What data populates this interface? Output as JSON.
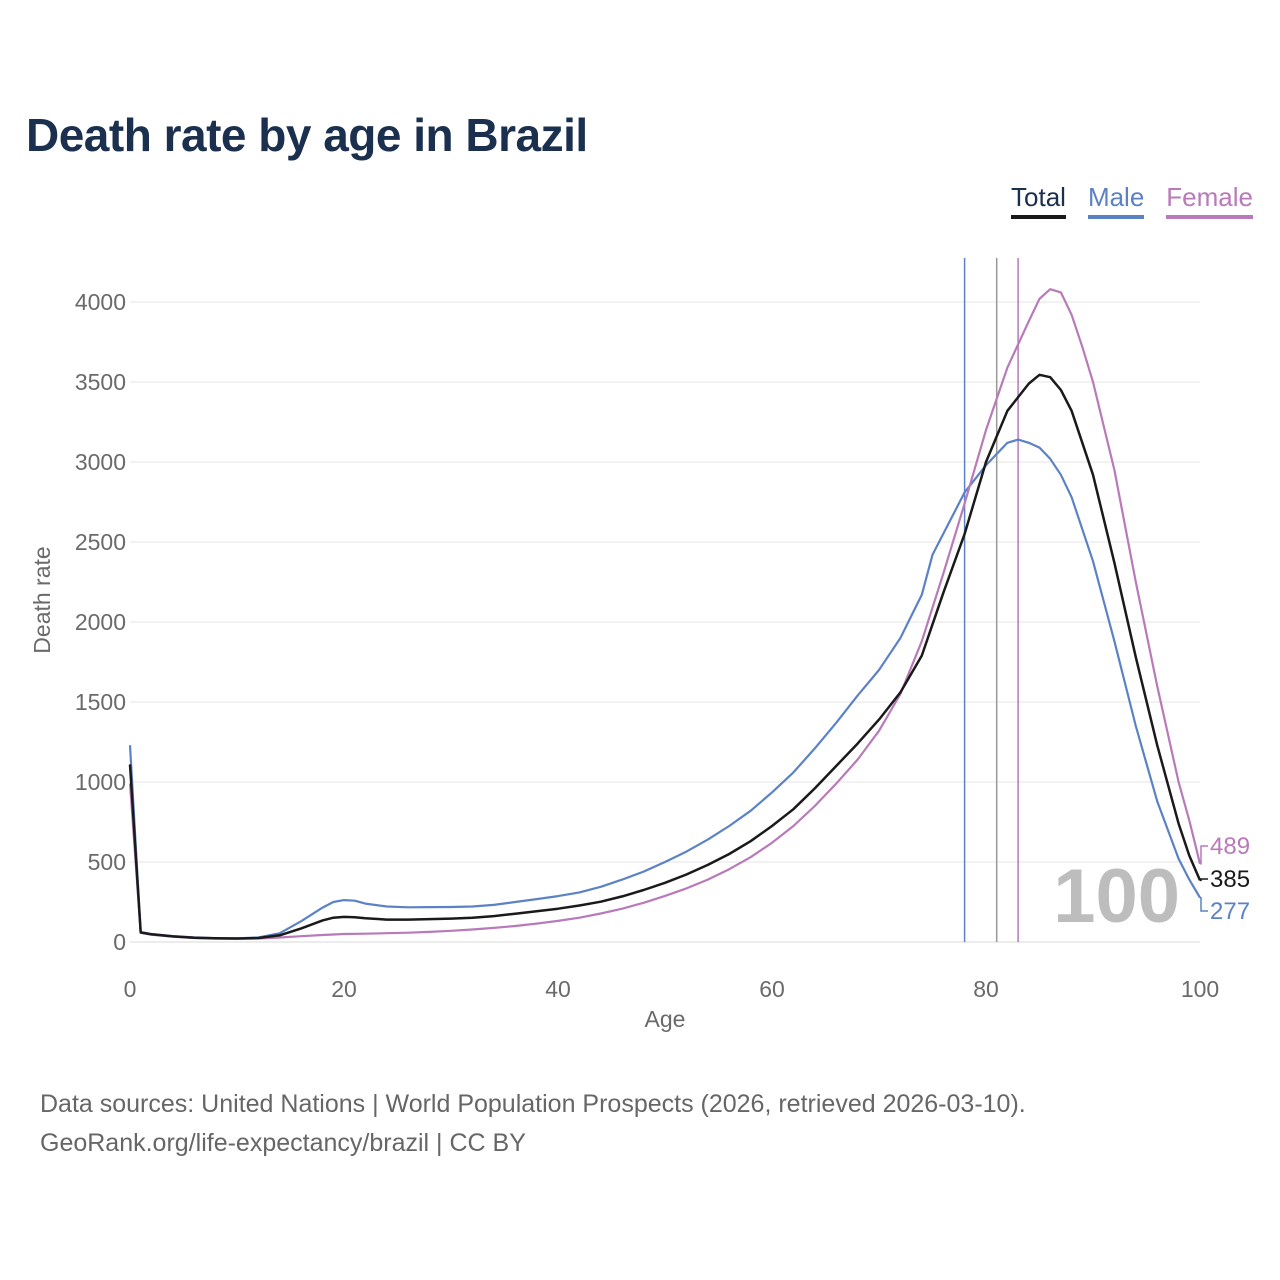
{
  "title": "Death rate by age in Brazil",
  "legend": [
    {
      "label": "Total",
      "color": "#1a1a1a"
    },
    {
      "label": "Male",
      "color": "#5b82c5"
    },
    {
      "label": "Female",
      "color": "#b87ab8"
    }
  ],
  "footer": {
    "line1": "Data sources: United Nations | World Population Prospects (2026, retrieved 2026-03-10).",
    "line2": "GeoRank.org/life-expectancy/brazil | CC BY"
  },
  "watermark_age": "100",
  "chart_data": {
    "type": "line",
    "title": "Death rate by age in Brazil",
    "xlabel": "Age",
    "ylabel": "Death rate",
    "xlim": [
      0,
      100
    ],
    "ylim": [
      0,
      4300
    ],
    "xticks": [
      0,
      20,
      40,
      60,
      80,
      100
    ],
    "yticks": [
      0,
      500,
      1000,
      1500,
      2000,
      2500,
      3000,
      3500,
      4000
    ],
    "grid": true,
    "series": [
      {
        "name": "Total",
        "color": "#1a1a1a",
        "end_label": "385",
        "life_expectancy_age": 81,
        "points": [
          [
            0,
            1110
          ],
          [
            1,
            60
          ],
          [
            2,
            48
          ],
          [
            4,
            35
          ],
          [
            6,
            27
          ],
          [
            8,
            23
          ],
          [
            10,
            22
          ],
          [
            12,
            25
          ],
          [
            14,
            42
          ],
          [
            16,
            85
          ],
          [
            18,
            135
          ],
          [
            19,
            152
          ],
          [
            20,
            157
          ],
          [
            21,
            155
          ],
          [
            22,
            148
          ],
          [
            24,
            140
          ],
          [
            26,
            140
          ],
          [
            28,
            143
          ],
          [
            30,
            146
          ],
          [
            32,
            152
          ],
          [
            34,
            162
          ],
          [
            36,
            177
          ],
          [
            38,
            192
          ],
          [
            40,
            208
          ],
          [
            42,
            228
          ],
          [
            44,
            252
          ],
          [
            46,
            285
          ],
          [
            48,
            325
          ],
          [
            50,
            370
          ],
          [
            52,
            422
          ],
          [
            54,
            482
          ],
          [
            56,
            550
          ],
          [
            58,
            630
          ],
          [
            60,
            725
          ],
          [
            62,
            830
          ],
          [
            64,
            960
          ],
          [
            66,
            1100
          ],
          [
            68,
            1240
          ],
          [
            70,
            1390
          ],
          [
            72,
            1560
          ],
          [
            74,
            1790
          ],
          [
            76,
            2180
          ],
          [
            78,
            2550
          ],
          [
            80,
            3000
          ],
          [
            82,
            3320
          ],
          [
            84,
            3490
          ],
          [
            85,
            3545
          ],
          [
            86,
            3530
          ],
          [
            87,
            3450
          ],
          [
            88,
            3320
          ],
          [
            90,
            2920
          ],
          [
            92,
            2370
          ],
          [
            94,
            1780
          ],
          [
            96,
            1230
          ],
          [
            98,
            740
          ],
          [
            99,
            540
          ],
          [
            100,
            385
          ]
        ]
      },
      {
        "name": "Male",
        "color": "#5b82c5",
        "end_label": "277",
        "life_expectancy_age": 78,
        "points": [
          [
            0,
            1230
          ],
          [
            1,
            62
          ],
          [
            2,
            50
          ],
          [
            4,
            37
          ],
          [
            6,
            29
          ],
          [
            8,
            24
          ],
          [
            10,
            23
          ],
          [
            12,
            28
          ],
          [
            14,
            55
          ],
          [
            16,
            130
          ],
          [
            18,
            215
          ],
          [
            19,
            250
          ],
          [
            20,
            262
          ],
          [
            21,
            258
          ],
          [
            22,
            240
          ],
          [
            24,
            222
          ],
          [
            26,
            217
          ],
          [
            28,
            218
          ],
          [
            30,
            219
          ],
          [
            32,
            222
          ],
          [
            34,
            232
          ],
          [
            36,
            250
          ],
          [
            38,
            268
          ],
          [
            40,
            287
          ],
          [
            42,
            310
          ],
          [
            44,
            345
          ],
          [
            46,
            390
          ],
          [
            48,
            440
          ],
          [
            50,
            500
          ],
          [
            52,
            565
          ],
          [
            54,
            640
          ],
          [
            56,
            725
          ],
          [
            58,
            820
          ],
          [
            60,
            935
          ],
          [
            62,
            1060
          ],
          [
            64,
            1210
          ],
          [
            66,
            1370
          ],
          [
            68,
            1540
          ],
          [
            70,
            1700
          ],
          [
            72,
            1900
          ],
          [
            74,
            2170
          ],
          [
            75,
            2420
          ],
          [
            78,
            2810
          ],
          [
            80,
            2980
          ],
          [
            82,
            3120
          ],
          [
            83,
            3140
          ],
          [
            84,
            3120
          ],
          [
            85,
            3090
          ],
          [
            86,
            3020
          ],
          [
            87,
            2920
          ],
          [
            88,
            2780
          ],
          [
            90,
            2380
          ],
          [
            92,
            1880
          ],
          [
            94,
            1350
          ],
          [
            96,
            880
          ],
          [
            98,
            520
          ],
          [
            99,
            390
          ],
          [
            100,
            277
          ]
        ]
      },
      {
        "name": "Female",
        "color": "#b87ab8",
        "end_label": "489",
        "life_expectancy_age": 83,
        "points": [
          [
            0,
            990
          ],
          [
            1,
            57
          ],
          [
            2,
            45
          ],
          [
            4,
            33
          ],
          [
            6,
            25
          ],
          [
            8,
            21
          ],
          [
            10,
            20
          ],
          [
            12,
            22
          ],
          [
            14,
            28
          ],
          [
            16,
            36
          ],
          [
            18,
            44
          ],
          [
            20,
            50
          ],
          [
            22,
            52
          ],
          [
            24,
            55
          ],
          [
            26,
            58
          ],
          [
            28,
            63
          ],
          [
            30,
            70
          ],
          [
            32,
            78
          ],
          [
            34,
            88
          ],
          [
            36,
            100
          ],
          [
            38,
            115
          ],
          [
            40,
            132
          ],
          [
            42,
            152
          ],
          [
            44,
            178
          ],
          [
            46,
            208
          ],
          [
            48,
            245
          ],
          [
            50,
            288
          ],
          [
            52,
            335
          ],
          [
            54,
            390
          ],
          [
            56,
            455
          ],
          [
            58,
            530
          ],
          [
            60,
            620
          ],
          [
            62,
            725
          ],
          [
            64,
            850
          ],
          [
            66,
            990
          ],
          [
            68,
            1140
          ],
          [
            70,
            1320
          ],
          [
            72,
            1550
          ],
          [
            74,
            1880
          ],
          [
            76,
            2300
          ],
          [
            78,
            2740
          ],
          [
            80,
            3200
          ],
          [
            82,
            3590
          ],
          [
            84,
            3880
          ],
          [
            85,
            4020
          ],
          [
            86,
            4080
          ],
          [
            87,
            4060
          ],
          [
            88,
            3920
          ],
          [
            89,
            3720
          ],
          [
            90,
            3500
          ],
          [
            92,
            2950
          ],
          [
            94,
            2250
          ],
          [
            96,
            1600
          ],
          [
            98,
            1000
          ],
          [
            99,
            760
          ],
          [
            100,
            489
          ]
        ]
      }
    ]
  }
}
